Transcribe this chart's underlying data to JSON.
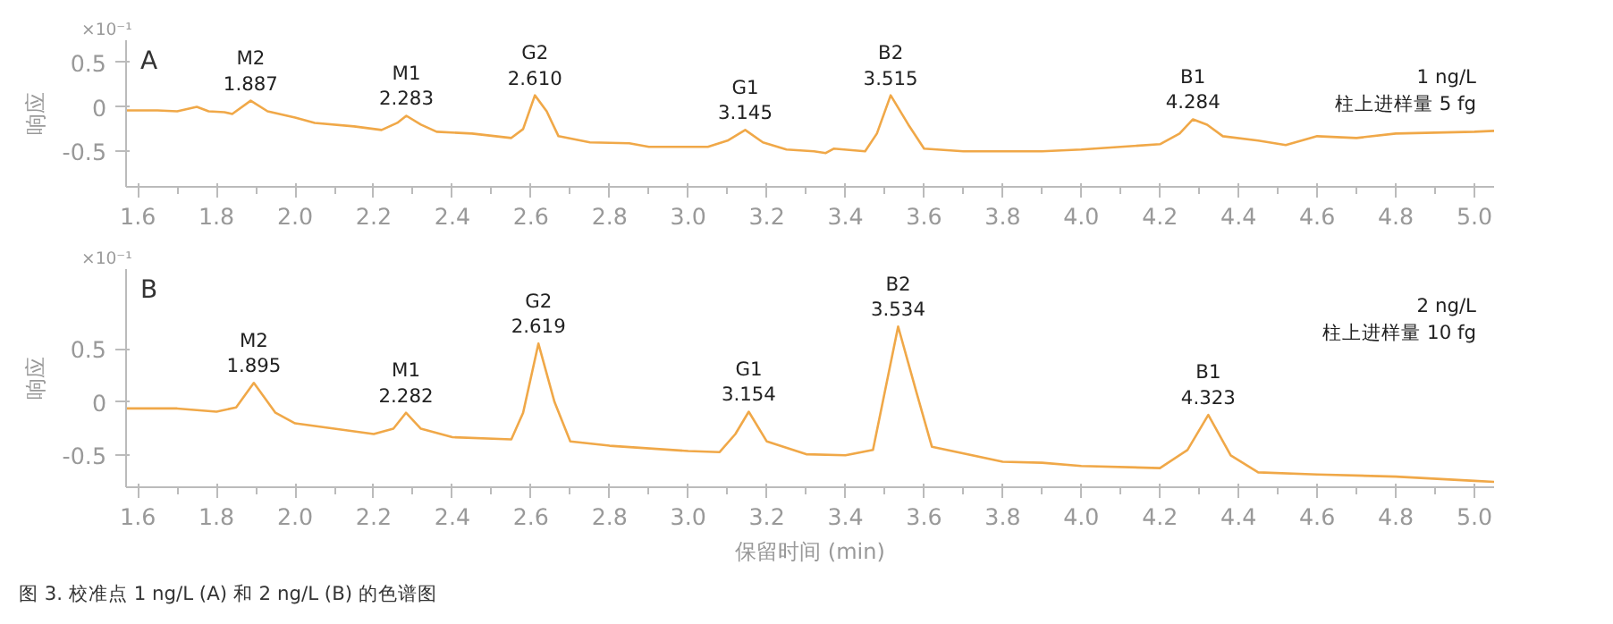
{
  "chart_data": [
    {
      "type": "line",
      "title": "A",
      "ylabel": "响应",
      "grid": false,
      "xlim": [
        1.57,
        5.05
      ],
      "ylim": [
        -0.9,
        0.75
      ],
      "xticks": [
        1.6,
        1.8,
        {
          "value": 2,
          "label": "2.0"
        },
        2.2,
        2.4,
        2.6,
        2.8,
        {
          "value": 3,
          "label": "3.0"
        },
        3.2,
        3.4,
        3.6,
        3.8,
        {
          "value": 4,
          "label": "4.0"
        },
        4.2,
        4.4,
        4.6,
        4.8,
        {
          "value": 5,
          "label": "5.0"
        }
      ],
      "yticks": [
        -0.5,
        0,
        0.5
      ],
      "series": [
        {
          "color": "#f0a848",
          "x": [
            1.57,
            1.65,
            1.7,
            1.75,
            1.78,
            1.82,
            1.84,
            1.887,
            1.93,
            2.0,
            2.05,
            2.15,
            2.22,
            2.26,
            2.283,
            2.32,
            2.36,
            2.45,
            2.55,
            2.58,
            2.61,
            2.64,
            2.67,
            2.75,
            2.85,
            2.9,
            3.05,
            3.1,
            3.145,
            3.19,
            3.25,
            3.32,
            3.35,
            3.37,
            3.45,
            3.48,
            3.515,
            3.56,
            3.6,
            3.7,
            3.9,
            4.0,
            4.1,
            4.2,
            4.25,
            4.284,
            4.32,
            4.36,
            4.45,
            4.52,
            4.6,
            4.7,
            4.8,
            4.9,
            5.0,
            5.05
          ],
          "values": [
            -0.04,
            -0.04,
            -0.05,
            0.0,
            -0.05,
            -0.06,
            -0.08,
            0.07,
            -0.05,
            -0.12,
            -0.18,
            -0.22,
            -0.26,
            -0.18,
            -0.1,
            -0.2,
            -0.28,
            -0.3,
            -0.35,
            -0.25,
            0.13,
            -0.05,
            -0.33,
            -0.4,
            -0.41,
            -0.45,
            -0.45,
            -0.38,
            -0.26,
            -0.4,
            -0.48,
            -0.5,
            -0.52,
            -0.47,
            -0.5,
            -0.3,
            0.13,
            -0.2,
            -0.47,
            -0.5,
            -0.5,
            -0.48,
            -0.45,
            -0.42,
            -0.3,
            -0.14,
            -0.2,
            -0.33,
            -0.38,
            -0.43,
            -0.33,
            -0.35,
            -0.3,
            -0.29,
            -0.28,
            -0.27
          ]
        }
      ],
      "annotations": [
        "×10⁻¹",
        "1 ng/L\n柱上进样量 5 fg",
        {
          "text": "M2\n1.887",
          "x": 1.887,
          "y": 0.07
        },
        {
          "text": "M1\n2.283",
          "x": 2.283,
          "y": -0.1
        },
        {
          "text": "G2\n2.610",
          "x": 2.61,
          "y": 0.13
        },
        {
          "text": "G1\n3.145",
          "x": 3.145,
          "y": -0.26
        },
        {
          "text": "B2\n3.515",
          "x": 3.515,
          "y": 0.13
        },
        {
          "text": "B1\n4.284",
          "x": 4.284,
          "y": -0.14
        }
      ]
    },
    {
      "type": "line",
      "title": "B",
      "ylabel": "响应",
      "xlabel": "保留时间 (min)",
      "grid": false,
      "xlim": [
        1.57,
        5.05
      ],
      "ylim": [
        -0.8,
        1.25
      ],
      "xticks": [
        1.6,
        1.8,
        {
          "value": 2,
          "label": "2.0"
        },
        2.2,
        2.4,
        2.6,
        2.8,
        {
          "value": 3,
          "label": "3.0"
        },
        3.2,
        3.4,
        3.6,
        3.8,
        {
          "value": 4,
          "label": "4.0"
        },
        4.2,
        4.4,
        4.6,
        4.8,
        {
          "value": 5,
          "label": "5.0"
        }
      ],
      "yticks": [
        -0.5,
        0,
        0.5
      ],
      "series": [
        {
          "color": "#f0a848",
          "x": [
            1.57,
            1.7,
            1.8,
            1.85,
            1.895,
            1.95,
            2.0,
            2.1,
            2.2,
            2.25,
            2.282,
            2.32,
            2.4,
            2.55,
            2.58,
            2.619,
            2.66,
            2.7,
            2.8,
            3.0,
            3.08,
            3.12,
            3.154,
            3.2,
            3.3,
            3.4,
            3.47,
            3.534,
            3.58,
            3.62,
            3.8,
            3.9,
            4.0,
            4.2,
            4.27,
            4.323,
            4.38,
            4.45,
            4.6,
            4.8,
            5.0,
            5.05
          ],
          "values": [
            -0.06,
            -0.06,
            -0.09,
            -0.05,
            0.18,
            -0.1,
            -0.2,
            -0.25,
            -0.3,
            -0.25,
            -0.1,
            -0.25,
            -0.33,
            -0.35,
            -0.1,
            0.55,
            0.0,
            -0.37,
            -0.41,
            -0.46,
            -0.47,
            -0.3,
            -0.09,
            -0.37,
            -0.49,
            -0.5,
            -0.45,
            0.71,
            0.1,
            -0.42,
            -0.56,
            -0.57,
            -0.6,
            -0.62,
            -0.45,
            -0.12,
            -0.5,
            -0.66,
            -0.68,
            -0.7,
            -0.74,
            -0.75
          ]
        }
      ],
      "annotations": [
        "×10⁻¹",
        "2 ng/L\n柱上进样量 10 fg",
        "图 3. 校准点 1 ng/L (A) 和 2 ng/L (B) 的色谱图",
        {
          "text": "M2\n1.895",
          "x": 1.895,
          "y": 0.18
        },
        {
          "text": "M1\n2.282",
          "x": 2.282,
          "y": -0.1
        },
        {
          "text": "G2\n2.619",
          "x": 2.619,
          "y": 0.55
        },
        {
          "text": "G1\n3.154",
          "x": 3.154,
          "y": -0.09
        },
        {
          "text": "B2\n3.534",
          "x": 3.534,
          "y": 0.71
        },
        {
          "text": "B1\n4.323",
          "x": 4.323,
          "y": -0.12
        }
      ]
    }
  ]
}
